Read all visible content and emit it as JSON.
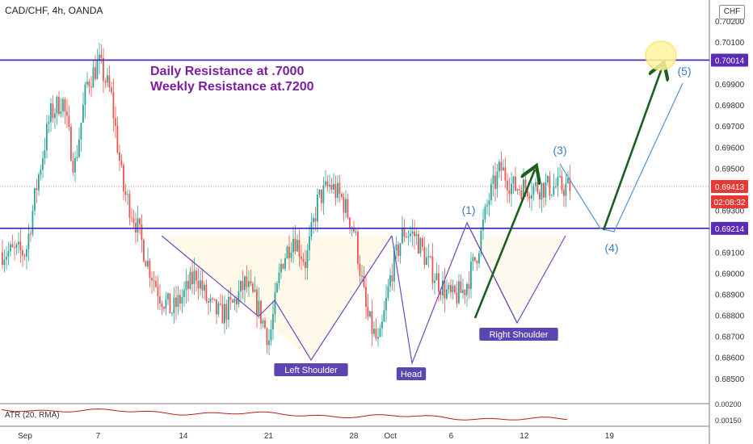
{
  "header": {
    "symbol": "CAD/CHF, 4h, OANDA",
    "currency": "CHF"
  },
  "notes": {
    "daily": "Daily Resistance at .7000",
    "weekly": "Weekly Resistance at.7200"
  },
  "labels": {
    "left_shoulder": "Left Shoulder",
    "head": "Head",
    "right_shoulder": "Right Shoulder",
    "wave1": "(1)",
    "wave3": "(3)",
    "wave4": "(4)",
    "wave5": "(5)"
  },
  "atr": {
    "label": "ATR (20, RMA)",
    "ticks": [
      "0.00200",
      "0.00150"
    ]
  },
  "price_badges": [
    {
      "text": "0.70014",
      "color": "#5b2bb5"
    },
    {
      "text": "0.69413",
      "color": "#e53935"
    },
    {
      "text": "02:08:32",
      "color": "#e53935"
    },
    {
      "text": "0.69214",
      "color": "#5b2bb5"
    }
  ],
  "colors": {
    "up": "#26a69a",
    "down": "#ef5350",
    "resistance": "#3f1fbf",
    "pattern": "#6a4cc2",
    "arrow": "#1b5e20",
    "projection": "#5d9bd6",
    "wave_text": "#3a7fc1",
    "target": "#fff59d"
  },
  "chart_data": {
    "type": "candlestick",
    "title": "CAD/CHF, 4h, OANDA",
    "x_tick_labels": [
      "Sep",
      "7",
      "14",
      "21",
      "28",
      "Oct",
      "6",
      "12",
      "19"
    ],
    "y_tick_labels": [
      "0.70200",
      "0.70100",
      "0.69900",
      "0.69800",
      "0.69700",
      "0.69600",
      "0.69500",
      "0.69300",
      "0.69100",
      "0.69000",
      "0.68900",
      "0.68800",
      "0.68700",
      "0.68600",
      "0.68500"
    ],
    "ylim": [
      0.6843,
      0.7025
    ],
    "resistance_levels": [
      0.70014,
      0.69214
    ],
    "last_price": 0.69413,
    "pattern": "inverse head and shoulders",
    "grid": false,
    "legend": "none",
    "points": [
      {
        "x": "Sep 1",
        "y": 0.691
      },
      {
        "x": "Sep 2",
        "y": 0.6945
      },
      {
        "x": "Sep 3",
        "y": 0.6975
      },
      {
        "x": "Sep 4",
        "y": 0.6983
      },
      {
        "x": "Sep 5",
        "y": 0.695
      },
      {
        "x": "Sep 6",
        "y": 0.699
      },
      {
        "x": "Sep 7",
        "y": 0.7
      },
      {
        "x": "Sep 8",
        "y": 0.6985
      },
      {
        "x": "Sep 9",
        "y": 0.694
      },
      {
        "x": "Sep 10",
        "y": 0.6925
      },
      {
        "x": "Sep 11",
        "y": 0.6905
      },
      {
        "x": "Sep 12",
        "y": 0.689
      },
      {
        "x": "Sep 13",
        "y": 0.6882
      },
      {
        "x": "Sep 14",
        "y": 0.689
      },
      {
        "x": "Sep 15",
        "y": 0.69
      },
      {
        "x": "Sep 16",
        "y": 0.6885
      },
      {
        "x": "Sep 17",
        "y": 0.688
      },
      {
        "x": "Sep 18",
        "y": 0.6885
      },
      {
        "x": "Sep 19",
        "y": 0.6895
      },
      {
        "x": "Sep 20",
        "y": 0.6885
      },
      {
        "x": "Sep 21",
        "y": 0.6868
      },
      {
        "x": "Sep 22",
        "y": 0.6905
      },
      {
        "x": "Sep 23",
        "y": 0.6918
      },
      {
        "x": "Sep 24",
        "y": 0.6905
      },
      {
        "x": "Sep 25",
        "y": 0.6935
      },
      {
        "x": "Sep 26",
        "y": 0.6942
      },
      {
        "x": "Sep 27",
        "y": 0.6935
      },
      {
        "x": "Sep 28",
        "y": 0.692
      },
      {
        "x": "Sep 29",
        "y": 0.688
      },
      {
        "x": "Sep 30",
        "y": 0.6865
      },
      {
        "x": "Oct 1",
        "y": 0.69
      },
      {
        "x": "Oct 2",
        "y": 0.692
      },
      {
        "x": "Oct 3",
        "y": 0.6918
      },
      {
        "x": "Oct 4",
        "y": 0.6905
      },
      {
        "x": "Oct 5",
        "y": 0.6895
      },
      {
        "x": "Oct 6",
        "y": 0.6888
      },
      {
        "x": "Oct 7",
        "y": 0.6892
      },
      {
        "x": "Oct 8",
        "y": 0.6908
      },
      {
        "x": "Oct 9",
        "y": 0.6935
      },
      {
        "x": "Oct 10",
        "y": 0.695
      },
      {
        "x": "Oct 11",
        "y": 0.6941
      }
    ]
  }
}
